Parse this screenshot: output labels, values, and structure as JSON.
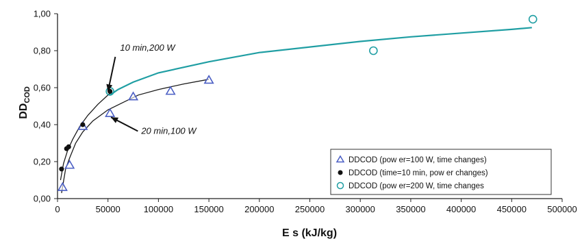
{
  "chart_data": {
    "type": "scatter",
    "xlabel": "E s (kJ/kg)",
    "ylabel_main": "DD",
    "ylabel_sub": "COD",
    "xlim": [
      0,
      500000
    ],
    "ylim": [
      0,
      1.0
    ],
    "x_ticks": [
      0,
      50000,
      100000,
      150000,
      200000,
      250000,
      300000,
      350000,
      400000,
      450000,
      500000
    ],
    "y_ticks": [
      0,
      0.2,
      0.4,
      0.6,
      0.8,
      1.0
    ],
    "x_tick_labels": [
      "0",
      "50000",
      "100000",
      "150000",
      "200000",
      "250000",
      "300000",
      "350000",
      "400000",
      "450000",
      "500000"
    ],
    "y_tick_labels": [
      "0,00",
      "0,20",
      "0,40",
      "0,60",
      "0,80",
      "1,00"
    ],
    "grid": false,
    "legend_position": "bottom-right",
    "series": [
      {
        "name": "DDCOD (pow er=100 W, time changes)",
        "marker": "triangle",
        "color": "#4a5ec4",
        "points": [
          [
            5000,
            0.06
          ],
          [
            12000,
            0.18
          ],
          [
            25000,
            0.39
          ],
          [
            52000,
            0.46
          ],
          [
            75000,
            0.55
          ],
          [
            112000,
            0.58
          ],
          [
            150000,
            0.64
          ]
        ],
        "trend": [
          [
            4000,
            0.03
          ],
          [
            8000,
            0.16
          ],
          [
            12000,
            0.22
          ],
          [
            18000,
            0.3
          ],
          [
            25000,
            0.36
          ],
          [
            35000,
            0.42
          ],
          [
            50000,
            0.48
          ],
          [
            65000,
            0.52
          ],
          [
            80000,
            0.56
          ],
          [
            100000,
            0.59
          ],
          [
            125000,
            0.62
          ],
          [
            150000,
            0.645
          ]
        ],
        "trend_color": "#1a1a1a"
      },
      {
        "name": "DDCOD (time=10 min, pow er changes)",
        "marker": "dot",
        "color": "#111111",
        "points": [
          [
            4000,
            0.16
          ],
          [
            9000,
            0.27
          ],
          [
            11000,
            0.28
          ],
          [
            25000,
            0.4
          ],
          [
            52000,
            0.58
          ]
        ],
        "trend": [
          [
            3000,
            0.1
          ],
          [
            6000,
            0.19
          ],
          [
            10000,
            0.26
          ],
          [
            15000,
            0.32
          ],
          [
            22000,
            0.39
          ],
          [
            30000,
            0.45
          ],
          [
            40000,
            0.51
          ],
          [
            52000,
            0.57
          ]
        ],
        "trend_color": "#1a1a1a"
      },
      {
        "name": "DDCOD (pow er=200 W, time changes",
        "marker": "circle",
        "color": "#1f9ea3",
        "points": [
          [
            52000,
            0.58
          ],
          [
            313000,
            0.8
          ],
          [
            471000,
            0.97
          ]
        ],
        "trend": [
          [
            52000,
            0.56
          ],
          [
            60000,
            0.59
          ],
          [
            75000,
            0.63
          ],
          [
            100000,
            0.68
          ],
          [
            150000,
            0.74
          ],
          [
            200000,
            0.79
          ],
          [
            250000,
            0.82
          ],
          [
            300000,
            0.85
          ],
          [
            350000,
            0.875
          ],
          [
            400000,
            0.895
          ],
          [
            450000,
            0.915
          ],
          [
            470000,
            0.925
          ]
        ],
        "trend_color": "#1f9ea3"
      }
    ],
    "annotations": [
      {
        "text": "10 min,200 W",
        "x": 62000,
        "y": 0.8,
        "arrow_to_x": 50000,
        "arrow_to_y": 0.58
      },
      {
        "text": "20 min,100 W",
        "x": 83000,
        "y": 0.35,
        "arrow_to_x": 53000,
        "arrow_to_y": 0.44
      }
    ]
  }
}
